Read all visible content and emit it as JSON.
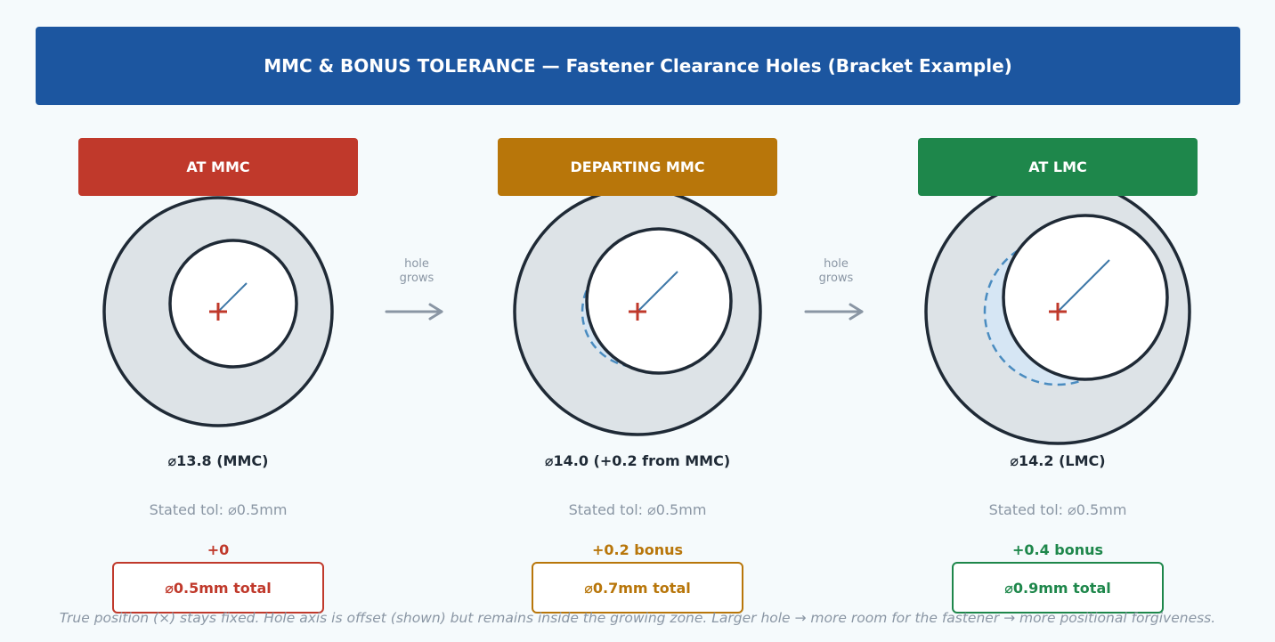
{
  "title": "MMC & BONUS TOLERANCE — Fastener Clearance Holes (Bracket Example)",
  "panels": [
    {
      "label": "AT MMC",
      "color": "#c0392b",
      "diameter_text": "⌀13.8  (MMC)",
      "stated_tol": "Stated tol:  ⌀0.5mm",
      "bonus": "+0",
      "total": "⌀0.5mm total",
      "hole_diameter": 13.8,
      "hole_offset": 0.2
    },
    {
      "label": "DEPARTING MMC",
      "color": "#b8760a",
      "diameter_text": "⌀14.0  (+0.2 from MMC)",
      "stated_tol": "Stated tol:  ⌀0.5mm",
      "bonus": "+0.2 bonus",
      "total": "⌀0.7mm total",
      "hole_diameter": 14.0,
      "hole_offset": 0.3
    },
    {
      "label": "AT LMC",
      "color": "#1e874b",
      "diameter_text": "⌀14.2  (LMC)",
      "stated_tol": "Stated tol:  ⌀0.5mm",
      "bonus": "+0.4 bonus",
      "total": "⌀0.9mm total",
      "hole_diameter": 14.2,
      "hole_offset": 0.4
    }
  ],
  "arrows": [
    {
      "label": "hole grows"
    },
    {
      "label": "hole grows"
    }
  ],
  "footer": "True position (×) stays fixed.  Hole axis is offset (shown) but remains inside the growing zone.  Larger hole → more room for the fastener → more positional forgiveness.",
  "icons": {
    "true_position": "cross-icon",
    "arrow": "arrow-right-icon"
  },
  "colors": {
    "banner": "#1c56a0",
    "outline": "#1f2a36",
    "plate": "#dde3e7",
    "zone_stroke": "#4a8cc0",
    "zone_fill": "#d6e6f4",
    "axis_line": "#3e78a8",
    "arrow": "#8a96a4"
  }
}
